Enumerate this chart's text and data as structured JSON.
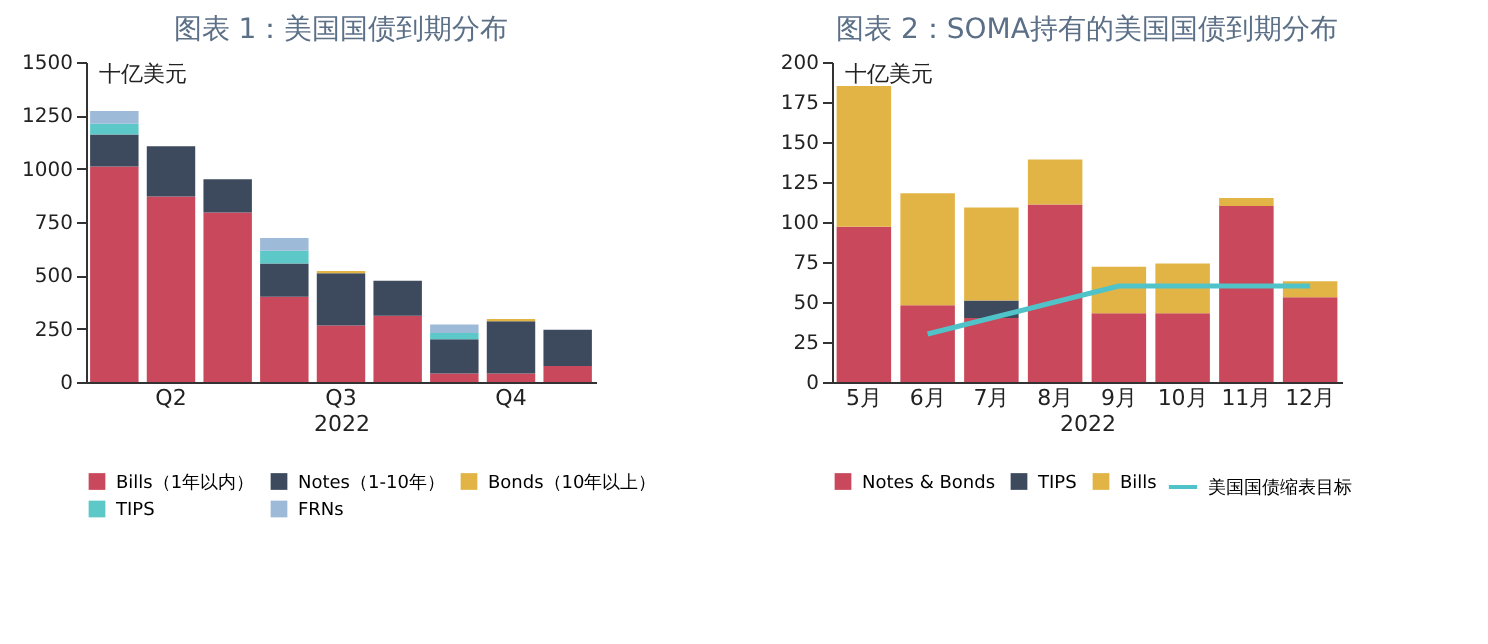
{
  "chart_data": [
    {
      "type": "bar",
      "title": "图表 1：美国国债到期分布",
      "ylabel": "十亿美元",
      "xlabel": "2022",
      "stacked": true,
      "legend": "bottom",
      "categories": [
        null,
        "Q2",
        null,
        null,
        "Q3",
        null,
        null,
        "Q4",
        null
      ],
      "ylim": [
        0,
        1500
      ],
      "yticks": [
        0,
        250,
        500,
        750,
        1000,
        1250,
        1500
      ],
      "series": [
        {
          "name": "Bills（1年以内）",
          "color": "#c9485b",
          "values": [
            1010,
            870,
            795,
            400,
            265,
            310,
            40,
            40,
            75
          ]
        },
        {
          "name": "Notes（1-10年）",
          "color": "#3d4a5e",
          "values": [
            150,
            235,
            155,
            155,
            245,
            165,
            160,
            245,
            170
          ]
        },
        {
          "name": "Bonds（10年以上）",
          "color": "#e2b446",
          "values": [
            null,
            null,
            null,
            null,
            10,
            null,
            null,
            10,
            null
          ]
        },
        {
          "name": "TIPS",
          "color": "#5cc8c8",
          "values": [
            50,
            null,
            null,
            60,
            null,
            null,
            30,
            null,
            null
          ]
        },
        {
          "name": "FRNs",
          "color": "#9dbad8",
          "values": [
            60,
            null,
            null,
            60,
            null,
            null,
            40,
            null,
            null
          ]
        }
      ]
    },
    {
      "type": "bar",
      "title": "图表 2：SOMA持有的美国国债到期分布",
      "ylabel": "十亿美元",
      "xlabel": "2022",
      "stacked": true,
      "legend": "bottom",
      "categories": [
        "5月",
        "6月",
        "7月",
        "8月",
        "9月",
        "10月",
        "11月",
        "12月"
      ],
      "ylim": [
        0,
        200
      ],
      "yticks": [
        0,
        25,
        50,
        75,
        100,
        125,
        150,
        175,
        200
      ],
      "series": [
        {
          "name": "Notes & Bonds",
          "color": "#c9485b",
          "values": [
            97,
            48,
            40,
            111,
            43,
            43,
            110,
            53
          ]
        },
        {
          "name": "TIPS",
          "color": "#3d4a5e",
          "values": [
            null,
            null,
            11,
            null,
            null,
            null,
            null,
            null
          ]
        },
        {
          "name": "Bills",
          "color": "#e2b446",
          "values": [
            88,
            70,
            58,
            28,
            29,
            31,
            5,
            10
          ]
        },
        {
          "name": "美国国债缩表目标",
          "type": "line",
          "color": "#4fc3c8",
          "values": [
            null,
            30,
            40,
            50,
            60,
            60,
            60,
            60
          ]
        }
      ]
    }
  ]
}
